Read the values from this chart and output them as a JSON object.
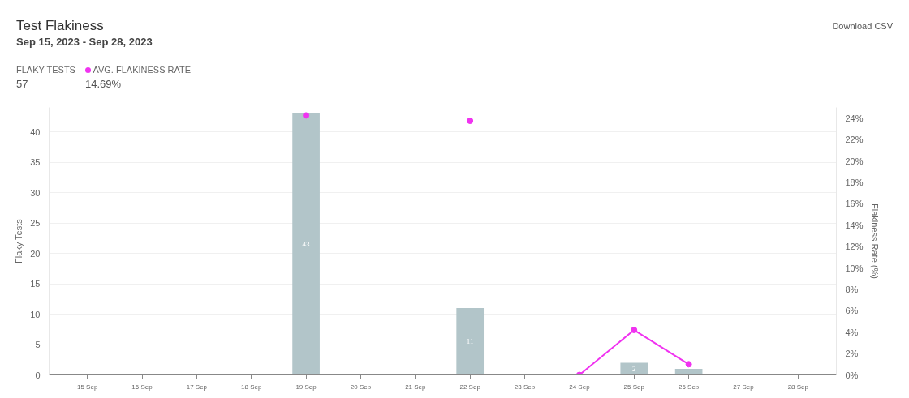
{
  "chart_data": {
    "type": "bar",
    "title": "Test Flakiness",
    "subtitle": "Sep 15, 2023 - Sep 28, 2023",
    "annotations": [
      "Download CSV",
      "FLAKY TESTS",
      "57",
      "AVG. FLAKINESS RATE",
      "14.69%"
    ],
    "ylabel": "Flaky Tests",
    "y2label": "Flakiness Rate (%)",
    "categories": [
      "15 Sep",
      "16 Sep",
      "17 Sep",
      "18 Sep",
      "19 Sep",
      "20 Sep",
      "21 Sep",
      "22 Sep",
      "23 Sep",
      "24 Sep",
      "25 Sep",
      "26 Sep",
      "27 Sep",
      "28 Sep"
    ],
    "series": [
      {
        "color": "#b2c5c9",
        "values": [
          null,
          null,
          null,
          null,
          43,
          null,
          null,
          11,
          null,
          null,
          2,
          1,
          null,
          null
        ],
        "value_labels": [
          null,
          null,
          null,
          null,
          "43",
          null,
          null,
          "11",
          null,
          null,
          "2",
          null,
          null,
          null
        ]
      },
      {
        "type": "line",
        "axis": "y2",
        "color": "#f033f0",
        "marker": "circle",
        "values": [
          null,
          null,
          null,
          null,
          24.25,
          null,
          null,
          23.75,
          null,
          0,
          4.2,
          1,
          null,
          null
        ]
      }
    ],
    "ylim": [
      0,
      44
    ],
    "yticks": [
      0,
      5,
      10,
      15,
      20,
      25,
      30,
      35,
      40
    ],
    "y2lim": [
      0,
      25
    ],
    "y2ticks": [
      {
        "value": 0,
        "label": "0%"
      },
      {
        "value": 2,
        "label": "2%"
      },
      {
        "value": 4,
        "label": "4%"
      },
      {
        "value": 6,
        "label": "6%"
      },
      {
        "value": 8,
        "label": "8%"
      },
      {
        "value": 10,
        "label": "10%"
      },
      {
        "value": 12,
        "label": "12%"
      },
      {
        "value": 14,
        "label": "14%"
      },
      {
        "value": 16,
        "label": "16%"
      },
      {
        "value": 18,
        "label": "18%"
      },
      {
        "value": 20,
        "label": "20%"
      },
      {
        "value": 22,
        "label": "22%"
      },
      {
        "value": 24,
        "label": "24%"
      }
    ],
    "grid": "y"
  }
}
